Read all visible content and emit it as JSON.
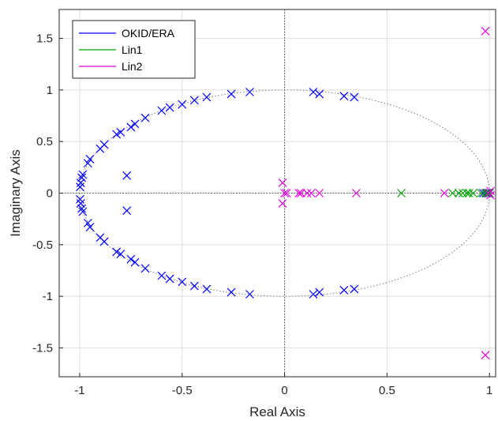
{
  "chart_data": {
    "type": "scatter",
    "title": "",
    "xlabel": "Real Axis",
    "ylabel": "Imaginary Axis",
    "xlim": [
      -1.1,
      1.03
    ],
    "ylim": [
      -1.78,
      1.78
    ],
    "x_ticks": [
      -1,
      -0.5,
      0,
      0.5,
      1
    ],
    "x_tick_labels": [
      "-1",
      "-0.5",
      "0",
      "0.5",
      "1"
    ],
    "y_ticks": [
      -1.5,
      -1,
      -0.5,
      0,
      0.5,
      1,
      1.5
    ],
    "y_tick_labels": [
      "-1.5",
      "-1",
      "-0.5",
      "0",
      "0.5",
      "1",
      "1.5"
    ],
    "grid": true,
    "unit_circle": true,
    "legend_position": "top-left",
    "marker": "x",
    "series": [
      {
        "name": "OKID/ERA",
        "color": "#0000ff",
        "points": [
          [
            -0.998,
            0.06
          ],
          [
            -0.998,
            -0.06
          ],
          [
            -0.995,
            0.1
          ],
          [
            -0.995,
            -0.1
          ],
          [
            -0.99,
            0.15
          ],
          [
            -0.99,
            -0.15
          ],
          [
            -0.985,
            0.18
          ],
          [
            -0.985,
            -0.18
          ],
          [
            -0.96,
            0.29
          ],
          [
            -0.96,
            -0.29
          ],
          [
            -0.95,
            0.33
          ],
          [
            -0.95,
            -0.33
          ],
          [
            -0.9,
            0.43
          ],
          [
            -0.9,
            -0.43
          ],
          [
            -0.88,
            0.47
          ],
          [
            -0.88,
            -0.47
          ],
          [
            -0.82,
            0.57
          ],
          [
            -0.82,
            -0.57
          ],
          [
            -0.8,
            0.59
          ],
          [
            -0.8,
            -0.59
          ],
          [
            -0.75,
            0.64
          ],
          [
            -0.75,
            -0.64
          ],
          [
            -0.73,
            0.67
          ],
          [
            -0.73,
            -0.67
          ],
          [
            -0.68,
            0.73
          ],
          [
            -0.68,
            -0.73
          ],
          [
            -0.6,
            0.8
          ],
          [
            -0.6,
            -0.8
          ],
          [
            -0.56,
            0.83
          ],
          [
            -0.56,
            -0.83
          ],
          [
            -0.5,
            0.86
          ],
          [
            -0.5,
            -0.86
          ],
          [
            -0.44,
            0.9
          ],
          [
            -0.44,
            -0.9
          ],
          [
            -0.38,
            0.93
          ],
          [
            -0.38,
            -0.93
          ],
          [
            -0.26,
            0.96
          ],
          [
            -0.26,
            -0.96
          ],
          [
            -0.17,
            0.98
          ],
          [
            -0.17,
            -0.98
          ],
          [
            -0.77,
            0.17
          ],
          [
            -0.77,
            -0.17
          ],
          [
            0.14,
            0.98
          ],
          [
            0.14,
            -0.98
          ],
          [
            0.17,
            0.96
          ],
          [
            0.17,
            -0.96
          ],
          [
            0.29,
            0.94
          ],
          [
            0.29,
            -0.94
          ],
          [
            0.34,
            0.93
          ],
          [
            0.34,
            -0.93
          ],
          [
            0.97,
            0.0
          ],
          [
            0.985,
            0.0
          ],
          [
            0.99,
            0.0
          ],
          [
            0.995,
            0.0
          ],
          [
            1.0,
            0.0
          ]
        ]
      },
      {
        "name": "Lin1",
        "color": "#00a000",
        "points": [
          [
            0.57,
            0.0
          ],
          [
            0.82,
            0.0
          ],
          [
            0.85,
            0.0
          ],
          [
            0.87,
            0.0
          ],
          [
            0.89,
            0.0
          ],
          [
            0.9,
            0.0
          ],
          [
            0.92,
            0.0
          ],
          [
            0.96,
            0.0
          ],
          [
            0.98,
            0.0
          ],
          [
            0.99,
            0.0
          ],
          [
            1.0,
            0.0
          ]
        ]
      },
      {
        "name": "Lin2",
        "color": "#dd00dd",
        "points": [
          [
            -0.01,
            0.1
          ],
          [
            -0.01,
            -0.1
          ],
          [
            0.0,
            0.0
          ],
          [
            0.01,
            0.0
          ],
          [
            0.07,
            0.0
          ],
          [
            0.08,
            0.0
          ],
          [
            0.11,
            0.0
          ],
          [
            0.13,
            0.0
          ],
          [
            0.17,
            0.0
          ],
          [
            0.35,
            0.0
          ],
          [
            0.78,
            0.0
          ],
          [
            0.98,
            1.57
          ],
          [
            0.98,
            -1.57
          ],
          [
            0.995,
            0.0
          ],
          [
            1.005,
            0.02
          ],
          [
            1.005,
            -0.02
          ]
        ]
      }
    ]
  }
}
